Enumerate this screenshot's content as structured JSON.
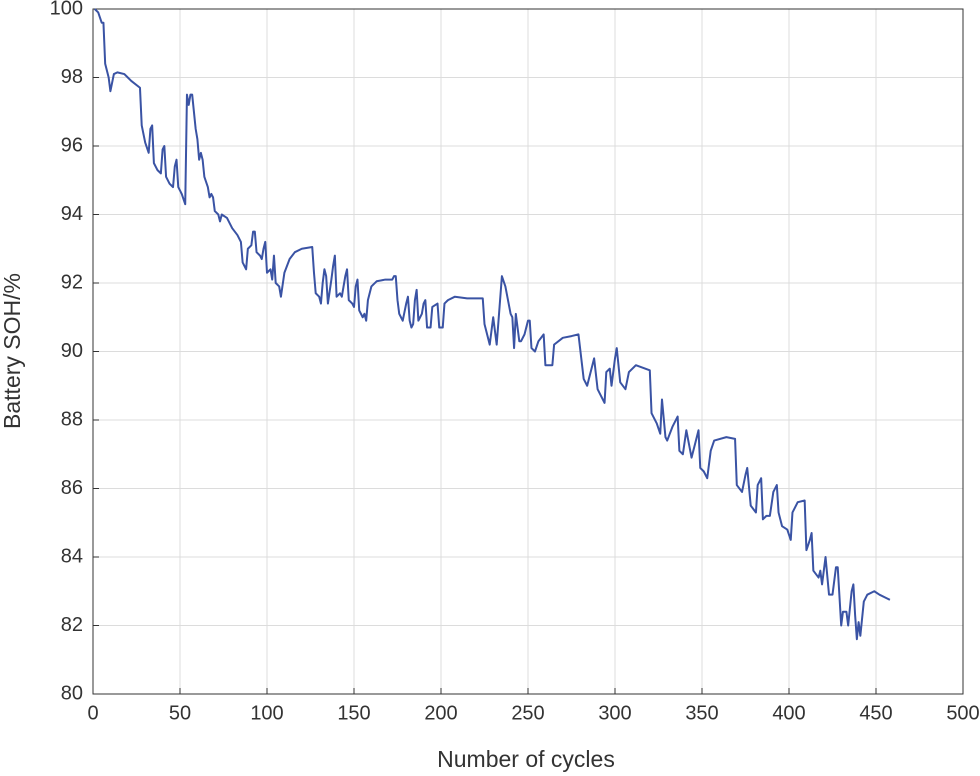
{
  "chart_data": {
    "type": "line",
    "xlabel": "Number of cycles",
    "ylabel": "Battery SOH/%",
    "x": [
      1,
      3,
      5,
      6,
      7,
      9,
      10,
      12,
      14,
      18,
      22,
      27,
      28,
      30,
      32,
      33,
      34,
      35,
      37,
      39,
      40,
      41,
      42,
      44,
      46,
      47,
      48,
      49,
      51,
      53,
      54,
      55,
      56,
      57,
      59,
      60,
      61,
      62,
      63,
      64,
      66,
      67,
      68,
      69,
      70,
      72,
      73,
      74,
      77,
      80,
      83,
      85,
      86,
      88,
      89,
      91,
      92,
      93,
      94,
      96,
      97,
      98,
      99,
      100,
      102,
      103,
      104,
      105,
      107,
      108,
      110,
      113,
      116,
      120,
      126,
      127,
      128,
      130,
      131,
      132,
      133,
      134,
      135,
      137,
      138,
      139,
      140,
      142,
      143,
      145,
      146,
      147,
      149,
      150,
      151,
      152,
      153,
      155,
      156,
      157,
      158,
      160,
      163,
      168,
      172,
      173,
      174,
      175,
      176,
      178,
      180,
      181,
      182,
      183,
      184,
      185,
      186,
      187,
      188,
      189,
      190,
      191,
      192,
      194,
      195,
      198,
      199,
      201,
      202,
      204,
      208,
      215,
      224,
      225,
      228,
      230,
      232,
      235,
      237,
      240,
      241,
      242,
      243,
      245,
      246,
      248,
      250,
      251,
      252,
      254,
      256,
      259,
      260,
      264,
      265,
      270,
      275,
      279,
      282,
      284,
      287,
      288,
      290,
      292,
      294,
      295,
      297,
      298,
      300,
      301,
      303,
      306,
      308,
      312,
      320,
      321,
      324,
      326,
      327,
      329,
      330,
      333,
      336,
      337,
      339,
      341,
      344,
      346,
      348,
      349,
      351,
      353,
      355,
      357,
      364,
      369,
      370,
      373,
      375,
      376,
      378,
      381,
      382,
      384,
      385,
      387,
      389,
      391,
      393,
      394,
      396,
      399,
      401,
      402,
      405,
      409,
      410,
      412,
      413,
      414,
      417,
      418,
      419,
      421,
      423,
      425,
      427,
      428,
      430,
      431,
      433,
      434,
      436,
      437,
      438,
      439,
      440,
      441,
      443,
      445,
      449,
      452,
      456,
      458
    ],
    "series": [
      {
        "name": "Battery SOH",
        "color": "#3a53a4",
        "values": [
          100,
          99.9,
          99.6,
          99.6,
          98.4,
          98.0,
          97.6,
          98.1,
          98.15,
          98.1,
          97.9,
          97.7,
          96.6,
          96.1,
          95.8,
          96.5,
          96.6,
          95.5,
          95.3,
          95.2,
          95.9,
          96.0,
          95.1,
          94.9,
          94.8,
          95.4,
          95.6,
          94.8,
          94.6,
          94.3,
          97.5,
          97.2,
          97.5,
          97.5,
          96.5,
          96.2,
          95.6,
          95.8,
          95.6,
          95.1,
          94.8,
          94.5,
          94.6,
          94.5,
          94.1,
          94.0,
          93.8,
          94.0,
          93.9,
          93.6,
          93.4,
          93.2,
          92.6,
          92.4,
          93.0,
          93.1,
          93.5,
          93.5,
          92.9,
          92.8,
          92.7,
          93.0,
          93.2,
          92.3,
          92.4,
          92.1,
          92.8,
          92.0,
          91.9,
          91.6,
          92.3,
          92.7,
          92.9,
          93.0,
          93.05,
          92.3,
          91.7,
          91.6,
          91.4,
          92.0,
          92.4,
          92.2,
          91.4,
          92.1,
          92.5,
          92.8,
          91.6,
          91.7,
          91.6,
          92.2,
          92.4,
          91.5,
          91.4,
          91.3,
          91.9,
          92.1,
          91.2,
          91.0,
          91.1,
          90.9,
          91.5,
          91.9,
          92.05,
          92.1,
          92.1,
          92.2,
          92.2,
          91.5,
          91.1,
          90.9,
          91.4,
          91.6,
          90.9,
          90.7,
          90.8,
          91.5,
          91.8,
          90.9,
          91.0,
          91.1,
          91.4,
          91.5,
          90.7,
          90.7,
          91.3,
          91.4,
          90.7,
          90.7,
          91.4,
          91.5,
          91.6,
          91.55,
          91.55,
          90.8,
          90.2,
          91.0,
          90.2,
          92.2,
          91.9,
          91.1,
          91.0,
          90.1,
          91.1,
          90.3,
          90.3,
          90.5,
          90.9,
          90.9,
          90.1,
          90.0,
          90.3,
          90.5,
          89.6,
          89.6,
          90.2,
          90.4,
          90.45,
          90.5,
          89.2,
          89.0,
          89.6,
          89.8,
          88.9,
          88.7,
          88.5,
          89.4,
          89.5,
          89.0,
          89.8,
          90.1,
          89.1,
          88.9,
          89.4,
          89.6,
          89.45,
          88.2,
          87.9,
          87.6,
          88.6,
          87.5,
          87.4,
          87.8,
          88.1,
          87.1,
          87.0,
          87.7,
          86.9,
          87.3,
          87.7,
          86.6,
          86.5,
          86.3,
          87.1,
          87.4,
          87.5,
          87.45,
          86.1,
          85.9,
          86.4,
          86.6,
          85.5,
          85.3,
          86.1,
          86.3,
          85.1,
          85.2,
          85.2,
          85.9,
          86.1,
          85.3,
          84.9,
          84.8,
          84.5,
          85.3,
          85.6,
          85.65,
          84.2,
          84.5,
          84.7,
          83.6,
          83.4,
          83.6,
          83.2,
          84.0,
          82.9,
          82.9,
          83.7,
          83.7,
          82.0,
          82.4,
          82.4,
          82.0,
          83.0,
          83.2,
          82.3,
          81.6,
          82.1,
          81.7,
          82.7,
          82.9,
          83.0,
          82.9,
          82.8,
          82.75
        ]
      }
    ],
    "xlim": [
      0,
      500
    ],
    "xticks": [
      0,
      50,
      100,
      150,
      200,
      250,
      300,
      350,
      400,
      450,
      500
    ],
    "ylim": [
      80,
      100
    ],
    "yticks": [
      80,
      82,
      84,
      86,
      88,
      90,
      92,
      94,
      96,
      98,
      100
    ],
    "grid": true
  }
}
